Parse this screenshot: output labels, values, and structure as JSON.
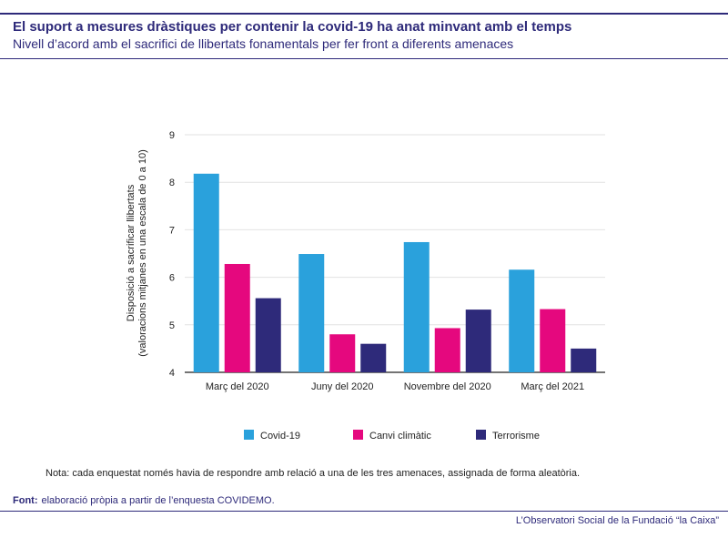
{
  "header": {
    "title": "El suport a mesures dràstiques per contenir la covid-19 ha anat minvant amb el temps",
    "subtitle": "Nivell d’acord amb el sacrifici de llibertats fonamentals per fer front a diferents amenaces"
  },
  "chart_data": {
    "type": "bar",
    "categories": [
      "Març del 2020",
      "Juny del 2020",
      "Novembre del 2020",
      "Març del 2021"
    ],
    "series": [
      {
        "name": "Covid-19",
        "color": "#2aa1dc",
        "values": [
          8.18,
          6.49,
          6.74,
          6.16
        ]
      },
      {
        "name": "Canvi climàtic",
        "color": "#e5087e",
        "values": [
          6.28,
          4.8,
          4.93,
          5.33
        ]
      },
      {
        "name": "Terrorisme",
        "color": "#2e2a7a",
        "values": [
          5.56,
          4.6,
          5.32,
          4.5
        ]
      }
    ],
    "ylabel": "Disposició a sacrificar llibertats (valoracions mitjanes en una escala de 0 a 10)",
    "ylabel_lines": [
      "Disposició a sacrificar llibertats",
      "(valoracions mitjanes en una escala de 0 a 10)"
    ],
    "ylim": [
      4,
      9
    ],
    "yticks": [
      4,
      5,
      6,
      7,
      8,
      9
    ],
    "grid": true,
    "legend": "bottom"
  },
  "notes": {
    "note": "Nota: cada enquestat només havia de respondre amb relació a una de les tres amenaces, assignada de forma aleatòria.",
    "source_label": "Font:",
    "source_text": "elaboració pròpia a partir de l’enquesta COVIDEMO.",
    "footer": "L’Observatori Social de la Fundació “la Caixa”"
  }
}
